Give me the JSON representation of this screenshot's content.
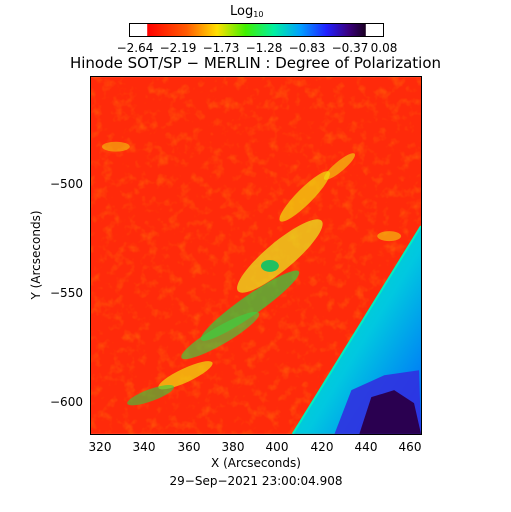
{
  "colorbar": {
    "title_base": "Log",
    "title_sub": "10",
    "tick_labels": [
      "−2.64",
      "−2.19",
      "−1.73",
      "−1.28",
      "−0.83",
      "−0.37",
      "0.08"
    ]
  },
  "title": "Hinode SOT/SP − MERLIN : Degree of Polarization",
  "axes": {
    "xlabel": "X (Arcseconds)",
    "ylabel": "Y (Arcseconds)",
    "x_ticks": [
      "320",
      "340",
      "360",
      "380",
      "400",
      "420",
      "440",
      "460"
    ],
    "y_ticks": [
      "−500",
      "−550",
      "−600"
    ]
  },
  "timestamp": "29−Sep−2021 23:00:04.908",
  "colors": {
    "background_red": "#ff2a0a",
    "active_yellow": "#f0e010",
    "active_green": "#30d040",
    "offlimb_cyan": "#00e0b0",
    "offlimb_blue": "#0090ff",
    "dark_purple": "#2a0050"
  }
}
